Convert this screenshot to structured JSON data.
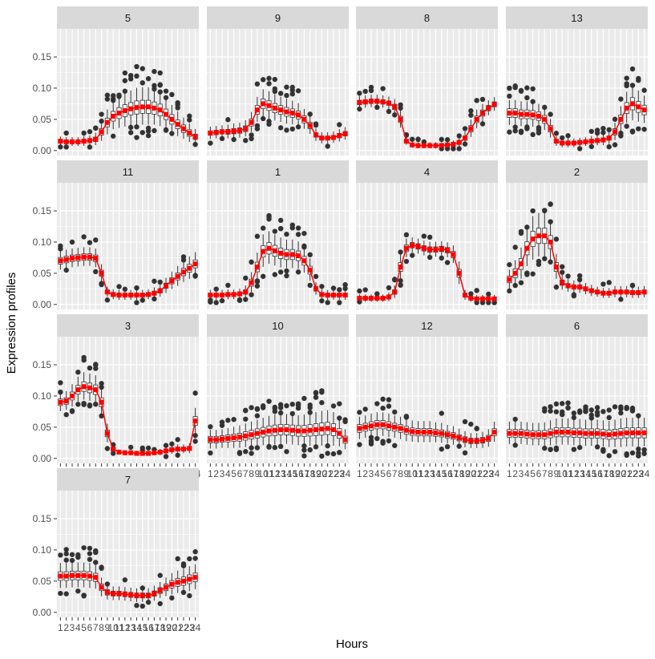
{
  "chart_data": {
    "type": "boxplot",
    "facet_by": "cluster",
    "xlabel": "Hours",
    "ylabel": "Expression profiles",
    "x": [
      "1",
      "2",
      "3",
      "4",
      "5",
      "6",
      "7",
      "8",
      "9",
      "10",
      "11",
      "12",
      "13",
      "14",
      "15",
      "16",
      "17",
      "18",
      "19",
      "20",
      "21",
      "22",
      "23",
      "24"
    ],
    "ylim": [
      -0.008,
      0.195
    ],
    "yticks": [
      0.0,
      0.05,
      0.1,
      0.15
    ],
    "ytick_labels": [
      "0.00",
      "0.05",
      "0.10",
      "0.15"
    ],
    "grid": true,
    "mean_line_color": "#ff0000",
    "box_color": "#333333",
    "outlier_color": "#333333",
    "panel_background": "#ebebeb",
    "strip_background": "#d9d9d9",
    "panels": [
      {
        "label": "5",
        "means": [
          0.015,
          0.014,
          0.014,
          0.014,
          0.015,
          0.016,
          0.018,
          0.03,
          0.045,
          0.055,
          0.06,
          0.064,
          0.067,
          0.069,
          0.07,
          0.07,
          0.068,
          0.065,
          0.058,
          0.05,
          0.042,
          0.035,
          0.028,
          0.022
        ],
        "spread": [
          0.007,
          0.007,
          0.007,
          0.007,
          0.008,
          0.008,
          0.01,
          0.015,
          0.02,
          0.022,
          0.025,
          0.027,
          0.028,
          0.03,
          0.03,
          0.03,
          0.028,
          0.027,
          0.024,
          0.022,
          0.02,
          0.017,
          0.015,
          0.012
        ]
      },
      {
        "label": "9",
        "means": [
          0.028,
          0.029,
          0.03,
          0.03,
          0.031,
          0.032,
          0.035,
          0.045,
          0.065,
          0.075,
          0.072,
          0.068,
          0.065,
          0.062,
          0.06,
          0.057,
          0.05,
          0.04,
          0.025,
          0.02,
          0.02,
          0.021,
          0.024,
          0.027
        ],
        "spread": [
          0.01,
          0.01,
          0.01,
          0.011,
          0.012,
          0.012,
          0.013,
          0.016,
          0.02,
          0.022,
          0.022,
          0.021,
          0.02,
          0.02,
          0.019,
          0.018,
          0.016,
          0.014,
          0.01,
          0.009,
          0.009,
          0.009,
          0.01,
          0.01
        ]
      },
      {
        "label": "8",
        "means": [
          0.077,
          0.078,
          0.079,
          0.079,
          0.078,
          0.076,
          0.07,
          0.05,
          0.015,
          0.009,
          0.008,
          0.008,
          0.008,
          0.008,
          0.008,
          0.009,
          0.01,
          0.013,
          0.02,
          0.035,
          0.05,
          0.06,
          0.068,
          0.074
        ],
        "spread": [
          0.01,
          0.01,
          0.01,
          0.01,
          0.01,
          0.01,
          0.012,
          0.014,
          0.006,
          0.005,
          0.005,
          0.005,
          0.005,
          0.005,
          0.005,
          0.005,
          0.006,
          0.008,
          0.01,
          0.014,
          0.015,
          0.014,
          0.012,
          0.011
        ]
      },
      {
        "label": "13",
        "means": [
          0.06,
          0.06,
          0.058,
          0.058,
          0.057,
          0.055,
          0.05,
          0.035,
          0.015,
          0.012,
          0.012,
          0.012,
          0.013,
          0.014,
          0.015,
          0.016,
          0.017,
          0.02,
          0.03,
          0.05,
          0.068,
          0.075,
          0.07,
          0.065
        ],
        "spread": [
          0.02,
          0.02,
          0.02,
          0.02,
          0.02,
          0.019,
          0.018,
          0.015,
          0.008,
          0.007,
          0.007,
          0.007,
          0.007,
          0.007,
          0.008,
          0.008,
          0.009,
          0.01,
          0.014,
          0.02,
          0.025,
          0.028,
          0.025,
          0.022
        ]
      },
      {
        "label": "11",
        "means": [
          0.07,
          0.072,
          0.074,
          0.075,
          0.076,
          0.076,
          0.074,
          0.05,
          0.02,
          0.016,
          0.015,
          0.015,
          0.015,
          0.015,
          0.015,
          0.016,
          0.018,
          0.022,
          0.03,
          0.038,
          0.045,
          0.052,
          0.058,
          0.065
        ],
        "spread": [
          0.015,
          0.015,
          0.015,
          0.015,
          0.015,
          0.015,
          0.015,
          0.014,
          0.008,
          0.008,
          0.008,
          0.008,
          0.008,
          0.008,
          0.008,
          0.008,
          0.009,
          0.01,
          0.012,
          0.014,
          0.016,
          0.017,
          0.018,
          0.018
        ]
      },
      {
        "label": "1",
        "means": [
          0.015,
          0.015,
          0.015,
          0.016,
          0.016,
          0.017,
          0.02,
          0.035,
          0.06,
          0.085,
          0.09,
          0.086,
          0.082,
          0.08,
          0.08,
          0.078,
          0.07,
          0.055,
          0.025,
          0.016,
          0.015,
          0.015,
          0.015,
          0.015
        ],
        "spread": [
          0.008,
          0.008,
          0.008,
          0.008,
          0.008,
          0.008,
          0.01,
          0.016,
          0.022,
          0.026,
          0.026,
          0.025,
          0.024,
          0.023,
          0.023,
          0.022,
          0.02,
          0.018,
          0.01,
          0.008,
          0.008,
          0.008,
          0.008,
          0.008
        ]
      },
      {
        "label": "4",
        "means": [
          0.01,
          0.01,
          0.01,
          0.01,
          0.01,
          0.012,
          0.02,
          0.06,
          0.09,
          0.095,
          0.093,
          0.09,
          0.088,
          0.088,
          0.089,
          0.087,
          0.08,
          0.05,
          0.015,
          0.01,
          0.009,
          0.009,
          0.009,
          0.009
        ],
        "spread": [
          0.006,
          0.006,
          0.006,
          0.006,
          0.006,
          0.007,
          0.01,
          0.02,
          0.015,
          0.012,
          0.012,
          0.012,
          0.012,
          0.012,
          0.012,
          0.012,
          0.014,
          0.018,
          0.008,
          0.006,
          0.006,
          0.006,
          0.006,
          0.006
        ]
      },
      {
        "label": "2",
        "means": [
          0.04,
          0.05,
          0.065,
          0.09,
          0.105,
          0.11,
          0.11,
          0.1,
          0.06,
          0.035,
          0.03,
          0.028,
          0.028,
          0.025,
          0.022,
          0.02,
          0.018,
          0.018,
          0.02,
          0.02,
          0.02,
          0.019,
          0.019,
          0.02
        ],
        "spread": [
          0.015,
          0.02,
          0.025,
          0.03,
          0.035,
          0.035,
          0.035,
          0.03,
          0.02,
          0.012,
          0.01,
          0.01,
          0.01,
          0.009,
          0.009,
          0.008,
          0.008,
          0.008,
          0.009,
          0.009,
          0.009,
          0.009,
          0.009,
          0.009
        ]
      },
      {
        "label": "3",
        "means": [
          0.09,
          0.092,
          0.1,
          0.11,
          0.115,
          0.113,
          0.11,
          0.09,
          0.04,
          0.015,
          0.01,
          0.009,
          0.009,
          0.008,
          0.008,
          0.008,
          0.009,
          0.01,
          0.012,
          0.014,
          0.015,
          0.015,
          0.016,
          0.06
        ],
        "spread": [
          0.015,
          0.015,
          0.018,
          0.02,
          0.022,
          0.022,
          0.022,
          0.02,
          0.015,
          0.006,
          0.004,
          0.004,
          0.004,
          0.004,
          0.004,
          0.004,
          0.004,
          0.005,
          0.006,
          0.007,
          0.007,
          0.007,
          0.008,
          0.02
        ]
      },
      {
        "label": "10",
        "means": [
          0.03,
          0.03,
          0.031,
          0.032,
          0.033,
          0.034,
          0.036,
          0.038,
          0.04,
          0.042,
          0.044,
          0.045,
          0.046,
          0.046,
          0.045,
          0.044,
          0.044,
          0.045,
          0.046,
          0.047,
          0.048,
          0.046,
          0.04,
          0.03
        ],
        "spread": [
          0.015,
          0.015,
          0.015,
          0.016,
          0.017,
          0.018,
          0.019,
          0.02,
          0.021,
          0.022,
          0.023,
          0.024,
          0.024,
          0.024,
          0.024,
          0.024,
          0.025,
          0.026,
          0.027,
          0.028,
          0.028,
          0.027,
          0.022,
          0.016
        ]
      },
      {
        "label": "12",
        "means": [
          0.048,
          0.05,
          0.052,
          0.054,
          0.054,
          0.052,
          0.05,
          0.048,
          0.045,
          0.043,
          0.042,
          0.042,
          0.042,
          0.041,
          0.04,
          0.038,
          0.036,
          0.033,
          0.03,
          0.028,
          0.028,
          0.029,
          0.032,
          0.042
        ],
        "spread": [
          0.018,
          0.018,
          0.019,
          0.019,
          0.019,
          0.019,
          0.018,
          0.018,
          0.018,
          0.017,
          0.017,
          0.017,
          0.017,
          0.016,
          0.016,
          0.015,
          0.015,
          0.014,
          0.013,
          0.012,
          0.012,
          0.013,
          0.014,
          0.016
        ]
      },
      {
        "label": "6",
        "means": [
          0.04,
          0.04,
          0.04,
          0.039,
          0.038,
          0.038,
          0.038,
          0.04,
          0.042,
          0.042,
          0.042,
          0.041,
          0.041,
          0.04,
          0.04,
          0.04,
          0.039,
          0.038,
          0.039,
          0.04,
          0.041,
          0.041,
          0.041,
          0.041
        ],
        "spread": [
          0.018,
          0.018,
          0.018,
          0.018,
          0.018,
          0.018,
          0.019,
          0.02,
          0.021,
          0.021,
          0.021,
          0.021,
          0.021,
          0.021,
          0.021,
          0.021,
          0.021,
          0.021,
          0.022,
          0.023,
          0.023,
          0.023,
          0.023,
          0.023
        ]
      },
      {
        "label": "7",
        "means": [
          0.058,
          0.058,
          0.059,
          0.059,
          0.059,
          0.058,
          0.056,
          0.04,
          0.032,
          0.03,
          0.03,
          0.029,
          0.028,
          0.027,
          0.027,
          0.027,
          0.03,
          0.035,
          0.04,
          0.045,
          0.048,
          0.05,
          0.053,
          0.056
        ],
        "spread": [
          0.02,
          0.02,
          0.02,
          0.02,
          0.02,
          0.02,
          0.019,
          0.015,
          0.012,
          0.011,
          0.011,
          0.011,
          0.011,
          0.011,
          0.011,
          0.011,
          0.012,
          0.013,
          0.015,
          0.017,
          0.018,
          0.019,
          0.02,
          0.02
        ]
      }
    ]
  }
}
